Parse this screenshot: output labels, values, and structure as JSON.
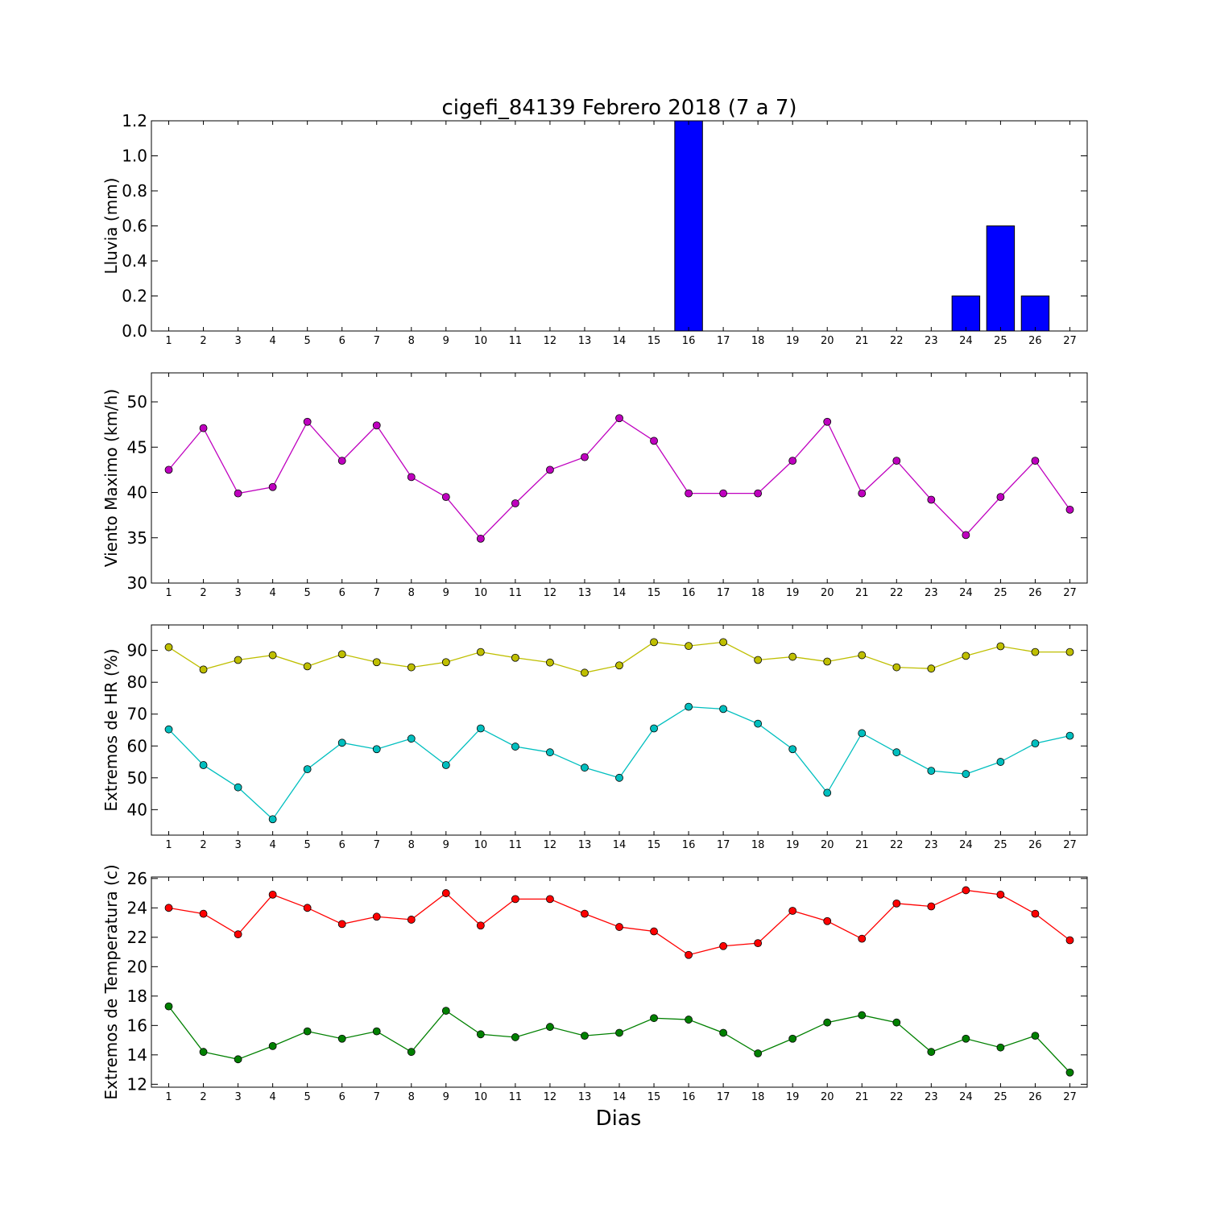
{
  "title": "cigefi_84139 Febrero 2018  (7 a 7)",
  "xlabel": "Dias",
  "days": [
    1,
    2,
    3,
    4,
    5,
    6,
    7,
    8,
    9,
    10,
    11,
    12,
    13,
    14,
    15,
    16,
    17,
    18,
    19,
    20,
    21,
    22,
    23,
    24,
    25,
    26,
    27
  ],
  "colors": {
    "rain": "#0000ff",
    "wind": "#bf00bf",
    "hr_max": "#bfbf00",
    "hr_min": "#00bfbf",
    "temp_max": "#ff0000",
    "temp_min": "#008000"
  },
  "chart_data": [
    {
      "type": "bar",
      "id": "rain",
      "ylabel": "Lluvia (mm)",
      "ylim": [
        0,
        1.2
      ],
      "yticks": [
        "0.0",
        "0.2",
        "0.4",
        "0.6",
        "0.8",
        "1.0",
        "1.2"
      ],
      "x": [
        1,
        2,
        3,
        4,
        5,
        6,
        7,
        8,
        9,
        10,
        11,
        12,
        13,
        14,
        15,
        16,
        17,
        18,
        19,
        20,
        21,
        22,
        23,
        24,
        25,
        26,
        27
      ],
      "values": [
        0,
        0,
        0,
        0,
        0,
        0,
        0,
        0,
        0,
        0,
        0,
        0,
        0,
        0,
        0,
        1.2,
        0,
        0,
        0,
        0,
        0,
        0,
        0,
        0.2,
        0.6,
        0.2,
        0
      ]
    },
    {
      "type": "line",
      "id": "wind",
      "ylabel": "Viento Maximo (km/h)",
      "ylim": [
        30,
        53.2
      ],
      "yticks": [
        "30",
        "35",
        "40",
        "45",
        "50"
      ],
      "x": [
        1,
        2,
        3,
        4,
        5,
        6,
        7,
        8,
        9,
        10,
        11,
        12,
        13,
        14,
        15,
        16,
        17,
        18,
        19,
        20,
        21,
        22,
        23,
        24,
        25,
        26,
        27
      ],
      "series": [
        {
          "values": [
            42.5,
            47.1,
            39.9,
            40.6,
            47.8,
            43.5,
            47.4,
            41.7,
            39.5,
            34.9,
            38.8,
            42.5,
            43.9,
            48.2,
            45.7,
            39.9,
            39.9,
            39.9,
            43.5,
            47.8,
            39.9,
            43.5,
            39.2,
            35.3,
            39.5,
            43.5,
            38.1
          ]
        }
      ]
    },
    {
      "type": "line",
      "id": "hr",
      "ylabel": "Extremos de HR (%)",
      "ylim": [
        32,
        98
      ],
      "yticks": [
        "40",
        "50",
        "60",
        "70",
        "80",
        "90"
      ],
      "x": [
        1,
        2,
        3,
        4,
        5,
        6,
        7,
        8,
        9,
        10,
        11,
        12,
        13,
        14,
        15,
        16,
        17,
        18,
        19,
        20,
        21,
        22,
        23,
        24,
        25,
        26,
        27
      ],
      "series": [
        {
          "values": [
            91,
            84,
            87,
            88.5,
            85,
            88.8,
            86.3,
            84.7,
            86.3,
            89.5,
            87.7,
            86.2,
            83,
            85.3,
            92.6,
            91.4,
            92.6,
            87,
            88,
            86.5,
            88.5,
            84.7,
            84.3,
            88.3,
            91.3,
            89.5,
            89.5
          ]
        },
        {
          "values": [
            65.2,
            54,
            47,
            37,
            52.7,
            61,
            59,
            62.3,
            54,
            65.5,
            59.8,
            58,
            53.2,
            50,
            65.5,
            72.3,
            71.6,
            67,
            59,
            45.3,
            64,
            58,
            52.2,
            51.2,
            55,
            60.8,
            63.2
          ]
        }
      ]
    },
    {
      "type": "line",
      "id": "temp",
      "ylabel": "Extremos de Temperatura (c)",
      "ylim": [
        11.8,
        26.1
      ],
      "yticks": [
        "12",
        "14",
        "16",
        "18",
        "20",
        "22",
        "24",
        "26"
      ],
      "x": [
        1,
        2,
        3,
        4,
        5,
        6,
        7,
        8,
        9,
        10,
        11,
        12,
        13,
        14,
        15,
        16,
        17,
        18,
        19,
        20,
        21,
        22,
        23,
        24,
        25,
        26,
        27
      ],
      "series": [
        {
          "values": [
            24,
            23.6,
            22.2,
            24.9,
            24,
            22.9,
            23.4,
            23.2,
            25,
            22.8,
            24.6,
            24.6,
            23.6,
            22.7,
            22.4,
            20.8,
            21.4,
            21.6,
            23.8,
            23.1,
            21.9,
            24.3,
            24.1,
            25.2,
            24.9,
            23.6,
            21.8
          ]
        },
        {
          "values": [
            17.3,
            14.2,
            13.7,
            14.6,
            15.6,
            15.1,
            15.6,
            14.2,
            17,
            15.4,
            15.2,
            15.9,
            15.3,
            15.5,
            16.5,
            16.4,
            15.5,
            14.1,
            15.1,
            16.2,
            16.7,
            16.2,
            14.2,
            15.1,
            14.5,
            15.3,
            12.8
          ]
        }
      ]
    }
  ]
}
